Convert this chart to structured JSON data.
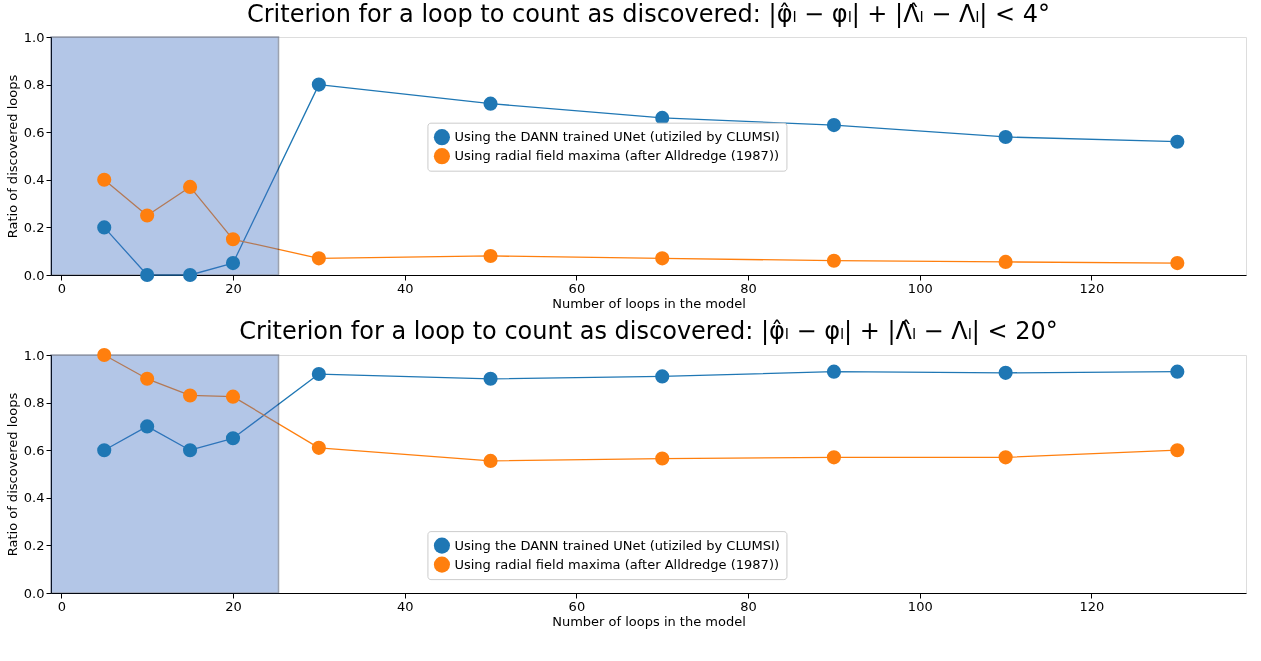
{
  "chart_data": [
    {
      "type": "line",
      "title": "Criterion for a loop to count as discovered: |φ̂ₗ − φₗ| + |Λ̂ₗ − Λₗ| < 4°",
      "xlabel": "Number of loops in the model",
      "ylabel": "Ratio of discovered loops",
      "x": [
        5,
        10,
        15,
        20,
        30,
        50,
        70,
        90,
        110,
        130
      ],
      "series": [
        {
          "name": "Using the DANN trained UNet (utiziled by CLUMSI)",
          "color": "#1f77b4",
          "values": [
            0.2,
            0.0,
            0.0,
            0.05,
            0.8,
            0.72,
            0.66,
            0.63,
            0.58,
            0.56
          ]
        },
        {
          "name": "Using radial field maxima (after Alldredge (1987))",
          "color": "#ff7f0e",
          "values": [
            0.4,
            0.25,
            0.37,
            0.15,
            0.07,
            0.08,
            0.07,
            0.06,
            0.055,
            0.05
          ]
        }
      ],
      "xlim": [
        -1.2,
        138
      ],
      "xticks": [
        0,
        20,
        40,
        60,
        80,
        100,
        120
      ],
      "ylim": [
        0,
        1
      ],
      "yticks": [
        {
          "value": 0,
          "label": "0.0"
        },
        {
          "value": 0.2,
          "label": "0.2"
        },
        {
          "value": 0.4,
          "label": "0.4"
        },
        {
          "value": 0.6,
          "label": "0.6"
        },
        {
          "value": 0.8,
          "label": "0.8"
        },
        {
          "value": 1,
          "label": "1.0"
        }
      ],
      "bands": [
        {
          "axis": "x",
          "from": -1.2,
          "to": 25.3,
          "color": "#4472c4"
        }
      ],
      "marker": "circle",
      "grid": false,
      "legend": "center"
    },
    {
      "type": "line",
      "title": "Criterion for a loop to count as discovered: |φ̂ₗ − φₗ| + |Λ̂ₗ − Λₗ| < 20°",
      "xlabel": "Number of loops in the model",
      "ylabel": "Ratio of discovered loops",
      "x": [
        5,
        10,
        15,
        20,
        30,
        50,
        70,
        90,
        110,
        130
      ],
      "series": [
        {
          "name": "Using the DANN trained UNet (utiziled by CLUMSI)",
          "color": "#1f77b4",
          "values": [
            0.6,
            0.7,
            0.6,
            0.65,
            0.92,
            0.9,
            0.91,
            0.93,
            0.925,
            0.93
          ]
        },
        {
          "name": "Using radial field maxima (after Alldredge (1987))",
          "color": "#ff7f0e",
          "values": [
            1.0,
            0.9,
            0.83,
            0.825,
            0.61,
            0.555,
            0.565,
            0.57,
            0.57,
            0.6
          ]
        }
      ],
      "xlim": [
        -1.2,
        138
      ],
      "xticks": [
        0,
        20,
        40,
        60,
        80,
        100,
        120
      ],
      "ylim": [
        0,
        1
      ],
      "yticks": [
        {
          "value": 0,
          "label": "0.0"
        },
        {
          "value": 0.2,
          "label": "0.2"
        },
        {
          "value": 0.4,
          "label": "0.4"
        },
        {
          "value": 0.6,
          "label": "0.6"
        },
        {
          "value": 0.8,
          "label": "0.8"
        },
        {
          "value": 1,
          "label": "1.0"
        }
      ],
      "bands": [
        {
          "axis": "x",
          "from": -1.2,
          "to": 25.3,
          "color": "#4472c4"
        }
      ],
      "marker": "circle",
      "grid": false,
      "legend": "bottom"
    }
  ]
}
